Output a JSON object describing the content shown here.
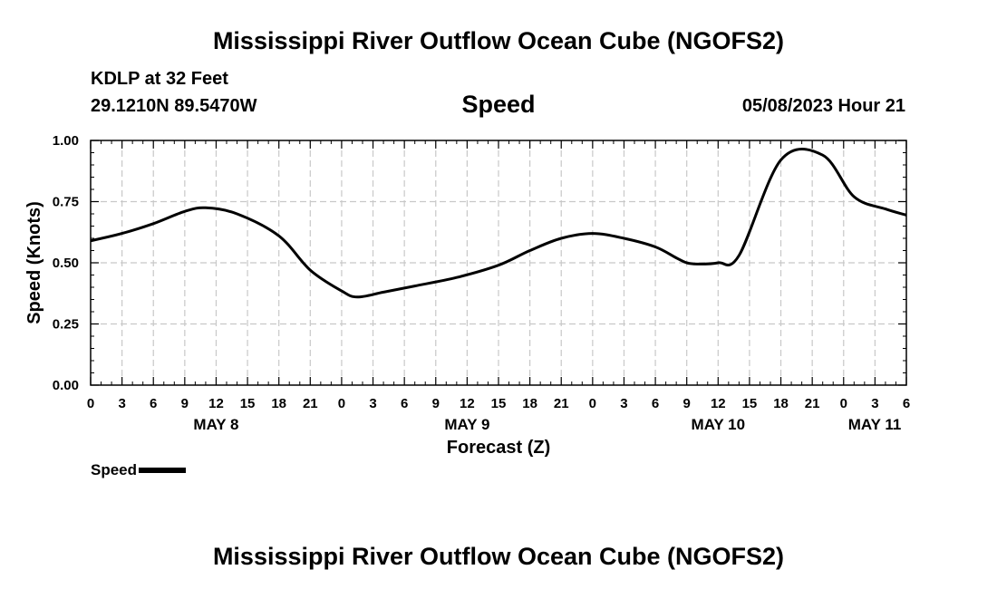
{
  "header": {
    "title": "Mississippi River Outflow Ocean Cube (NGOFS2)",
    "station": "KDLP at 32 Feet",
    "coords": "29.1210N  89.5470W",
    "variable": "Speed",
    "datetime": "05/08/2023 Hour 21"
  },
  "footer": {
    "title": "Mississippi River Outflow Ocean Cube (NGOFS2)"
  },
  "legend": {
    "label": "Speed",
    "color": "#000000"
  },
  "chart_data": {
    "type": "line",
    "title": "Speed",
    "xlabel": "Forecast (Z)",
    "ylabel": "Speed (Knots)",
    "ylim": [
      0,
      1
    ],
    "xlim_hours": [
      0,
      78
    ],
    "grid": true,
    "y_ticks": [
      "0.00",
      "0.25",
      "0.50",
      "0.75",
      "1.00"
    ],
    "x_tick_labels": [
      "0",
      "3",
      "6",
      "9",
      "12",
      "15",
      "18",
      "21",
      "0",
      "3",
      "6",
      "9",
      "12",
      "15",
      "18",
      "21",
      "0",
      "3",
      "6",
      "9",
      "12",
      "15",
      "18",
      "21",
      "0",
      "3",
      "6"
    ],
    "day_labels": [
      {
        "label": "MAY 8",
        "hour": 12
      },
      {
        "label": "MAY 9",
        "hour": 36
      },
      {
        "label": "MAY 10",
        "hour": 60
      },
      {
        "label": "MAY 11",
        "hour": 78
      }
    ],
    "series": [
      {
        "name": "Speed",
        "color": "#000000",
        "x": [
          0,
          3,
          6,
          9,
          11,
          14,
          18,
          21,
          24,
          25.5,
          28,
          31,
          35,
          39,
          42,
          45,
          48,
          51,
          54,
          56,
          57,
          58,
          60,
          62,
          66,
          70,
          73,
          76,
          78
        ],
        "values": [
          0.59,
          0.62,
          0.66,
          0.71,
          0.725,
          0.7,
          0.61,
          0.47,
          0.385,
          0.36,
          0.38,
          0.405,
          0.44,
          0.49,
          0.55,
          0.6,
          0.62,
          0.6,
          0.565,
          0.52,
          0.5,
          0.495,
          0.5,
          0.53,
          0.92,
          0.94,
          0.77,
          0.72,
          0.695
        ]
      }
    ]
  }
}
